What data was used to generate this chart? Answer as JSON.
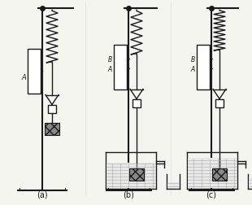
{
  "bg_color": "#f5f5f0",
  "line_color": "#1a1a1a",
  "gray_color": "#888888",
  "light_gray": "#cccccc",
  "captions": [
    "(a)",
    "(b)",
    "(c)"
  ],
  "fig_width": 3.1,
  "fig_height": 2.53,
  "dpi": 100
}
